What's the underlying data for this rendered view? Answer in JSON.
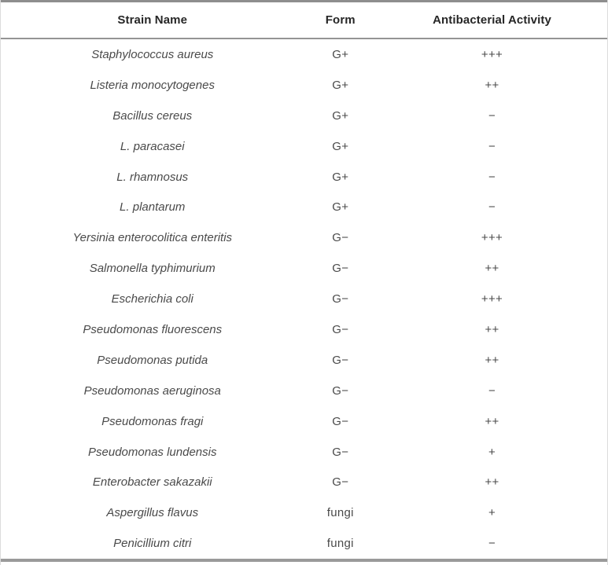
{
  "table": {
    "columns": [
      "Strain Name",
      "Form",
      "Antibacterial Activity"
    ],
    "rows": [
      {
        "name": "Staphylococcus aureus",
        "form": "G+",
        "activity": "+++"
      },
      {
        "name": "Listeria monocytogenes",
        "form": "G+",
        "activity": "++"
      },
      {
        "name": "Bacillus cereus",
        "form": "G+",
        "activity": "−"
      },
      {
        "name": "L. paracasei",
        "form": "G+",
        "activity": "−"
      },
      {
        "name": "L. rhamnosus",
        "form": "G+",
        "activity": "−"
      },
      {
        "name": "L. plantarum",
        "form": "G+",
        "activity": "−"
      },
      {
        "name": "Yersinia enterocolitica enteritis",
        "form": "G−",
        "activity": "+++"
      },
      {
        "name": "Salmonella typhimurium",
        "form": "G−",
        "activity": "++"
      },
      {
        "name": "Escherichia coli",
        "form": "G−",
        "activity": "+++"
      },
      {
        "name": "Pseudomonas fluorescens",
        "form": "G−",
        "activity": "++"
      },
      {
        "name": "Pseudomonas putida",
        "form": "G−",
        "activity": "++"
      },
      {
        "name": "Pseudomonas aeruginosa",
        "form": "G−",
        "activity": "−"
      },
      {
        "name": "Pseudomonas fragi",
        "form": "G−",
        "activity": "++"
      },
      {
        "name": "Pseudomonas lundensis",
        "form": "G−",
        "activity": "+"
      },
      {
        "name": "Enterobacter sakazakii",
        "form": "G−",
        "activity": "++"
      },
      {
        "name": "Aspergillus flavus",
        "form": "fungi",
        "activity": "+"
      },
      {
        "name": "Penicillium citri",
        "form": "fungi",
        "activity": "−"
      }
    ]
  },
  "colors": {
    "border_top": "#8e8e8e",
    "border_header": "#949494",
    "border_bottom": "#9a9a9a",
    "header_text": "#262626",
    "body_text": "#4a4a4a"
  }
}
